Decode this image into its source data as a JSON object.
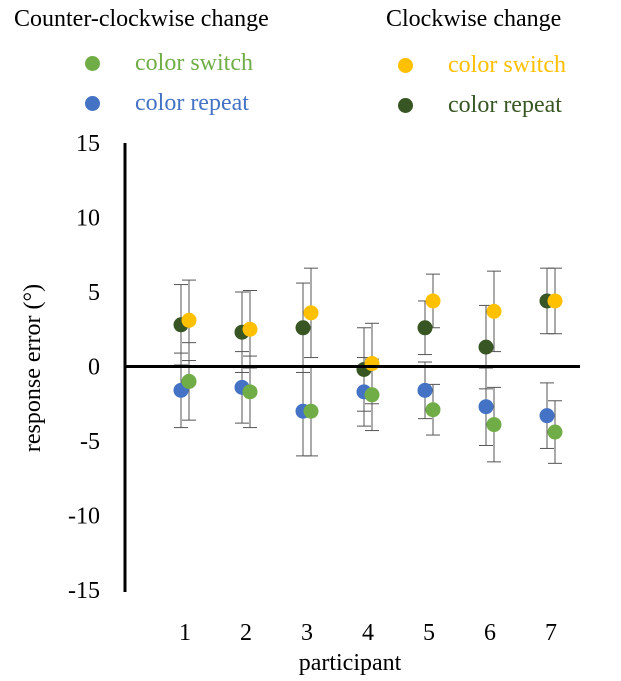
{
  "legend": {
    "left_title": "Counter-clockwise change",
    "right_title": "Clockwise change",
    "left_items": [
      {
        "label": "color switch",
        "color": "#70AD47"
      },
      {
        "label": "color repeat",
        "color": "#4472C4"
      }
    ],
    "right_items": [
      {
        "label": "color switch",
        "color": "#FFC000"
      },
      {
        "label": "color repeat",
        "color": "#375623"
      }
    ]
  },
  "chart_data": {
    "type": "scatter",
    "title": "",
    "xlabel": "participant",
    "ylabel": "response error (°)",
    "x": [
      1,
      2,
      3,
      4,
      5,
      6,
      7
    ],
    "xticks": [
      "1",
      "2",
      "3",
      "4",
      "5",
      "6",
      "7"
    ],
    "yticks": [
      "15",
      "10",
      "5",
      "0",
      "-5",
      "-10",
      "-15"
    ],
    "ylim": [
      -15,
      15
    ],
    "grid": false,
    "error_bars": true,
    "series": [
      {
        "name": "color repeat",
        "group": "Counter-clockwise change",
        "color": "#4472C4",
        "values": [
          -1.6,
          -1.4,
          -3.0,
          -1.7,
          -1.6,
          -2.7,
          -3.3
        ],
        "errors": [
          2.5,
          2.4,
          3.0,
          2.3,
          1.9,
          2.6,
          2.2
        ]
      },
      {
        "name": "color switch",
        "group": "Counter-clockwise change",
        "color": "#70AD47",
        "values": [
          -1.0,
          -1.7,
          -3.0,
          -1.9,
          -2.9,
          -3.9,
          -4.4
        ],
        "errors": [
          2.6,
          2.4,
          3.0,
          2.4,
          1.7,
          2.5,
          2.1
        ]
      },
      {
        "name": "color repeat",
        "group": "Clockwise change",
        "color": "#375623",
        "values": [
          2.8,
          2.3,
          2.6,
          -0.2,
          2.6,
          1.3,
          4.4
        ],
        "errors": [
          2.7,
          2.7,
          3.0,
          2.8,
          1.8,
          2.8,
          2.2
        ]
      },
      {
        "name": "color switch",
        "group": "Clockwise change",
        "color": "#FFC000",
        "values": [
          3.1,
          2.5,
          3.6,
          0.2,
          4.4,
          3.7,
          4.4
        ],
        "errors": [
          2.7,
          2.6,
          3.0,
          2.7,
          1.8,
          2.7,
          2.2
        ]
      }
    ]
  }
}
